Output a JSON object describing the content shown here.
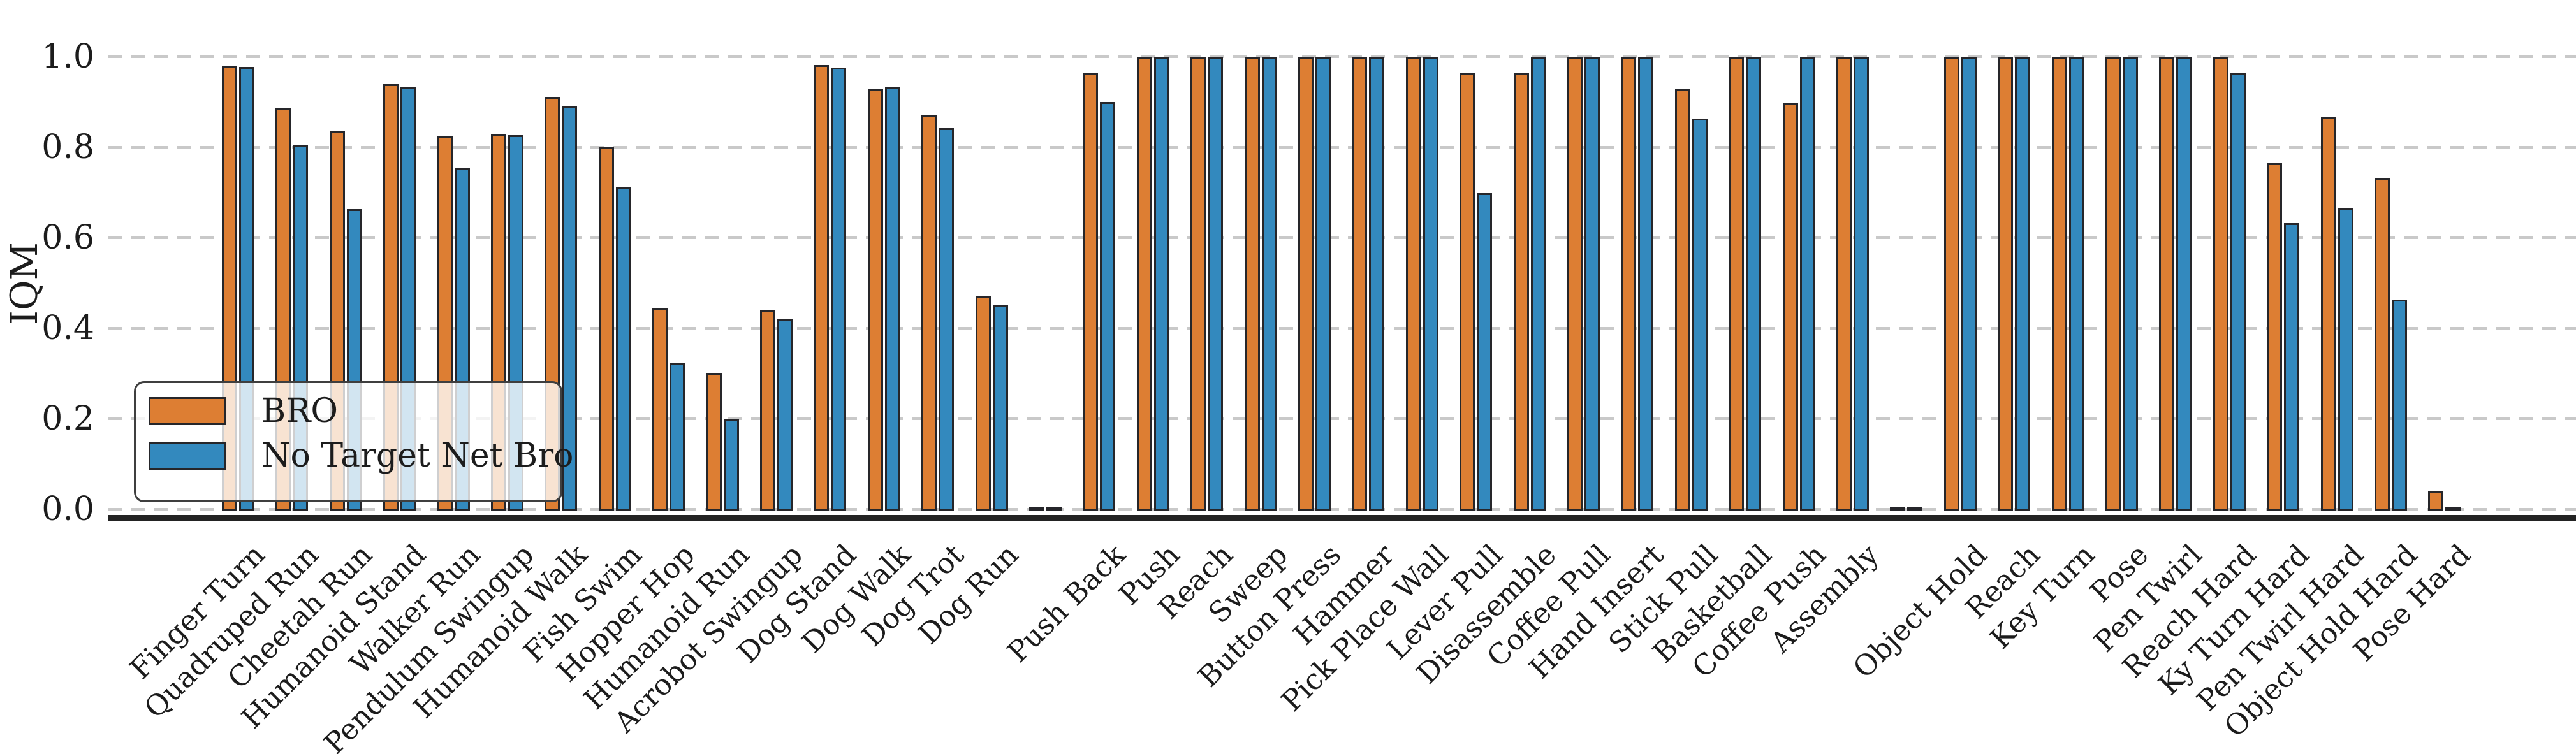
{
  "figure": {
    "ylabel": "IQM",
    "yticks": [
      "1.0",
      "0.8",
      "0.6",
      "0.4",
      "0.2",
      "0.0"
    ],
    "colors": {
      "bro": "#DD7E33",
      "no_target": "#3389BE",
      "bar_edge": "#26262a",
      "grid": "#c9c9c9",
      "axis": "#232323"
    }
  },
  "legend": {
    "items": [
      {
        "label": "BRO",
        "color": "#DD7E33"
      },
      {
        "label": "No Target Net Bro",
        "color": "#3389BE"
      }
    ]
  },
  "chart_data": {
    "type": "bar",
    "title": "",
    "xlabel": "",
    "ylabel": "IQM",
    "ylim": [
      0,
      1.0
    ],
    "yticks": [
      0.0,
      0.2,
      0.4,
      0.6,
      0.8,
      1.0
    ],
    "grid": "horizontal-dashed",
    "legend_position": "lower-left",
    "note": "empty-string categories are blank separator slots between task suites (DMC / Meta-World / MyoSuite); their near-zero values render as tiny dashes at the baseline",
    "categories": [
      "Finger Turn",
      "Quadruped Run",
      "Cheetah Run",
      "Humanoid Stand",
      "Walker Run",
      "Pendulum Swingup",
      "Humanoid Walk",
      "Fish Swim",
      "Hopper Hop",
      "Humanoid Run",
      "Acrobot Swingup",
      "Dog Stand",
      "Dog Walk",
      "Dog Trot",
      "Dog Run",
      "",
      "Push Back",
      "Push",
      "Reach",
      "Sweep",
      "Button Press",
      "Hammer",
      "Pick Place Wall",
      "Lever Pull",
      "Disassemble",
      "Coffee Pull",
      "Hand Insert",
      "Stick Pull",
      "Basketball",
      "Coffee Push",
      "Assembly",
      "",
      "Object Hold",
      "Reach",
      "Key Turn",
      "Pose",
      "Pen Twirl",
      "Reach Hard",
      "Ky Turn Hard",
      "Pen Twirl Hard",
      "Object Hold Hard",
      "Pose Hard"
    ],
    "series": [
      {
        "name": "BRO",
        "color": "#DD7E33",
        "values": [
          0.98,
          0.888,
          0.836,
          0.939,
          0.825,
          0.828,
          0.911,
          0.8,
          0.443,
          0.3,
          0.44,
          0.982,
          0.928,
          0.872,
          0.47,
          0.004,
          0.965,
          1.0,
          1.0,
          1.0,
          1.0,
          1.0,
          1.0,
          0.965,
          0.963,
          1.0,
          1.0,
          0.929,
          1.0,
          0.898,
          1.0,
          0.004,
          1.0,
          1.0,
          1.0,
          1.0,
          1.0,
          1.0,
          0.765,
          0.866,
          0.731,
          0.04
        ]
      },
      {
        "name": "No Target Net Bro",
        "color": "#3389BE",
        "values": [
          0.977,
          0.806,
          0.664,
          0.934,
          0.755,
          0.827,
          0.89,
          0.712,
          0.323,
          0.198,
          0.421,
          0.976,
          0.932,
          0.842,
          0.452,
          0.004,
          0.9,
          1.0,
          1.0,
          1.0,
          1.0,
          1.0,
          1.0,
          0.699,
          1.0,
          1.0,
          1.0,
          0.864,
          1.0,
          1.0,
          1.0,
          0.004,
          1.0,
          1.0,
          1.0,
          1.0,
          1.0,
          0.965,
          0.632,
          0.665,
          0.464,
          0.004
        ]
      }
    ]
  }
}
